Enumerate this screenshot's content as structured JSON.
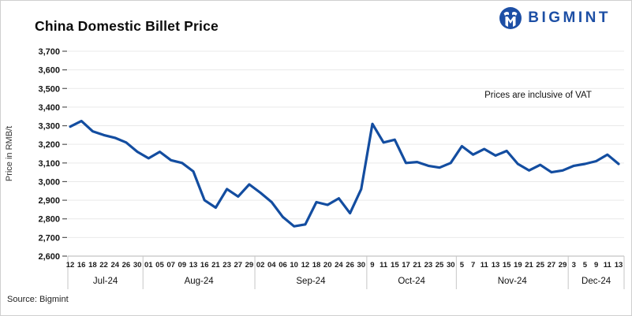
{
  "header": {
    "title": "China Domestic Billet Price",
    "logo_text": "BIGMINT"
  },
  "annotation": "Prices are inclusive of VAT",
  "source": "Source: Bigmint",
  "colors": {
    "line": "#134da0",
    "logo_blue": "#1d4fa5",
    "grid": "#e9e9e9",
    "axis": "#b5b5b5",
    "band": "#c6c6c6",
    "tick": "#555555",
    "label": "#141414"
  },
  "chart_data": {
    "type": "line",
    "title": "China Domestic Billet Price",
    "xlabel": "",
    "ylabel": "Price in RMB/t",
    "ylim": [
      2600,
      3700
    ],
    "yticks": [
      "2,600",
      "2,700",
      "2,800",
      "2,900",
      "3,000",
      "3,100",
      "3,200",
      "3,300",
      "3,400",
      "3,500",
      "3,600",
      "3,700"
    ],
    "grid": true,
    "legend": false,
    "annotation": "Prices are inclusive of VAT",
    "months": [
      {
        "label": "Jul-24",
        "days": [
          "12",
          "16",
          "18",
          "22",
          "24",
          "26",
          "30"
        ],
        "values": [
          3295,
          3325,
          3270,
          3250,
          3235,
          3210,
          3160
        ]
      },
      {
        "label": "Aug-24",
        "days": [
          "01",
          "05",
          "07",
          "09",
          "13",
          "16",
          "21",
          "23",
          "27",
          "29"
        ],
        "values": [
          3125,
          3160,
          3115,
          3100,
          3055,
          2900,
          2860,
          2960,
          2920,
          2985
        ]
      },
      {
        "label": "Sep-24",
        "days": [
          "02",
          "04",
          "06",
          "10",
          "12",
          "18",
          "20",
          "24",
          "26",
          "30"
        ],
        "values": [
          2940,
          2890,
          2810,
          2760,
          2770,
          2890,
          2875,
          2910,
          2830,
          2960
        ]
      },
      {
        "label": "Oct-24",
        "days": [
          "9",
          "11",
          "15",
          "17",
          "21",
          "23",
          "25",
          "30"
        ],
        "values": [
          3310,
          3210,
          3225,
          3100,
          3105,
          3085,
          3075,
          3100
        ]
      },
      {
        "label": "Nov-24",
        "days": [
          "5",
          "7",
          "11",
          "13",
          "15",
          "19",
          "21",
          "25",
          "27",
          "29"
        ],
        "values": [
          3190,
          3145,
          3175,
          3140,
          3165,
          3095,
          3060,
          3090,
          3050,
          3060
        ]
      },
      {
        "label": "Dec-24",
        "days": [
          "3",
          "5",
          "9",
          "11",
          "13"
        ],
        "values": [
          3085,
          3095,
          3110,
          3145,
          3095
        ]
      }
    ]
  }
}
